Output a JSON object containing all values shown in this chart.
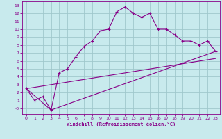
{
  "background_color": "#c8eaed",
  "grid_color": "#d8d8d8",
  "line_color": "#880088",
  "xlabel": "Windchill (Refroidissement éolien,°C)",
  "xlim": [
    -0.5,
    23.5
  ],
  "ylim": [
    -0.7,
    13.5
  ],
  "xticks": [
    0,
    1,
    2,
    3,
    4,
    5,
    6,
    7,
    8,
    9,
    10,
    11,
    12,
    13,
    14,
    15,
    16,
    17,
    18,
    19,
    20,
    21,
    22,
    23
  ],
  "yticks": [
    0,
    1,
    2,
    3,
    4,
    5,
    6,
    7,
    8,
    9,
    10,
    11,
    12,
    13
  ],
  "line1_x": [
    0,
    1,
    2,
    3,
    4,
    5,
    6,
    7,
    8,
    9,
    10,
    11,
    12,
    13,
    14,
    15,
    16,
    17,
    18,
    19,
    20,
    21,
    22,
    23
  ],
  "line1_y": [
    2.5,
    1.0,
    1.5,
    -0.2,
    4.5,
    5.0,
    6.5,
    7.8,
    8.5,
    9.8,
    10.0,
    12.2,
    12.8,
    12.0,
    11.5,
    12.0,
    10.0,
    10.0,
    9.3,
    8.5,
    8.5,
    8.0,
    8.5,
    7.2
  ],
  "line2_x": [
    0,
    3,
    23
  ],
  "line2_y": [
    2.5,
    -0.2,
    7.2
  ],
  "line3_x": [
    0,
    23
  ],
  "line3_y": [
    2.5,
    6.3
  ],
  "xlabel_fontsize": 5.0,
  "tick_fontsize": 4.5
}
